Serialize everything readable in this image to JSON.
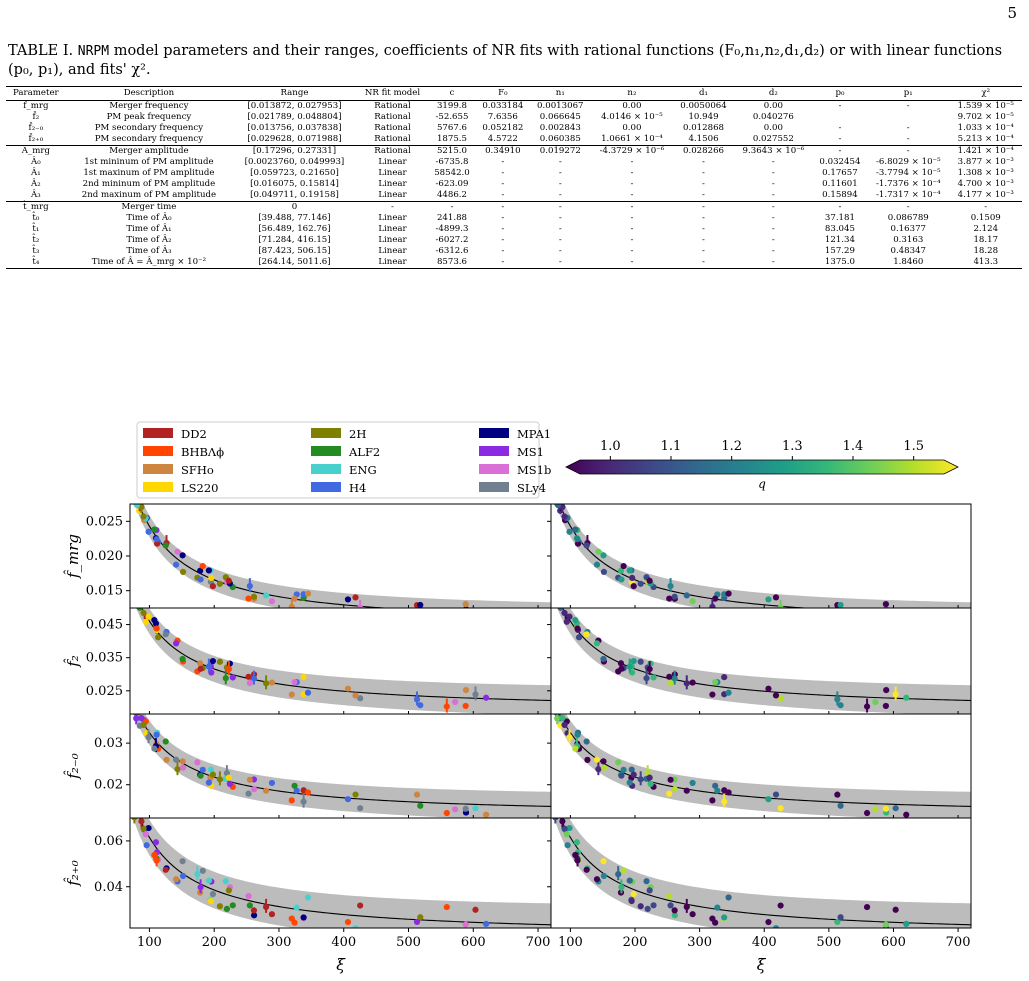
{
  "page_number": "5",
  "caption": {
    "prefix": "TABLE I.",
    "model_name": "NRPM",
    "text": " model parameters and their ranges, coefficients of NR fits with rational functions (F₀,n₁,n₂,d₁,d₂) or with linear functions (p₀, p₁), and fits' χ²."
  },
  "table": {
    "headers": [
      "Parameter",
      "Description",
      "Range",
      "NR fit model",
      "c",
      "F₀",
      "n₁",
      "n₂",
      "d₁",
      "d₂",
      "p₀",
      "p₁",
      "χ²"
    ],
    "groups": [
      [
        [
          "f̂_mrg",
          "Merger frequency",
          "[0.013872, 0.027953]",
          "Rational",
          "3199.8",
          "0.033184",
          "0.0013067",
          "0.00",
          "0.0050064",
          "0.00",
          "-",
          "-",
          "1.539 × 10⁻⁵"
        ],
        [
          "f̂₂",
          "PM peak frequency",
          "[0.021789, 0.048804]",
          "Rational",
          "-52.655",
          "7.6356",
          "0.066645",
          "4.0146 × 10⁻⁵",
          "10.949",
          "0.040276",
          "",
          "",
          "9.702 × 10⁻⁵"
        ],
        [
          "f̂₂₋₀",
          "PM secondary frequency",
          "[0.013756, 0.037838]",
          "Rational",
          "5767.6",
          "0.052182",
          "0.002843",
          "0.00",
          "0.012868",
          "0.00",
          "-",
          "-",
          "1.033 × 10⁻⁴"
        ],
        [
          "f̂₂₊₀",
          "PM secondary frequency",
          "[0.029628, 0.071988]",
          "Rational",
          "1875.5",
          "4.5722",
          "0.060385",
          "1.0661 × 10⁻⁴",
          "4.1506",
          "0.027552",
          "-",
          "-",
          "5.213 × 10⁻⁴"
        ]
      ],
      [
        [
          "Â_mrg",
          "Merger amplitude",
          "[0.17296, 0.27331]",
          "Rational",
          "5215.0",
          "0.34910",
          "0.019272",
          "-4.3729 × 10⁻⁶",
          "0.028266",
          "9.3643 × 10⁻⁶",
          "-",
          "-",
          "1.421 × 10⁻⁴"
        ],
        [
          "Â₀",
          "1st mininum of PM amplitude",
          "[0.0023760, 0.049993]",
          "Linear",
          "-6735.8",
          "-",
          "-",
          "-",
          "-",
          "-",
          "0.032454",
          "-6.8029 × 10⁻⁵",
          "3.877 × 10⁻³"
        ],
        [
          "Â₁",
          "1st maxinum of PM amplitude",
          "[0.059723, 0.21650]",
          "Linear",
          "58542.0",
          "-",
          "-",
          "-",
          "-",
          "-",
          "0.17657",
          "-3.7794 × 10⁻⁵",
          "1.308 × 10⁻³"
        ],
        [
          "Â₂",
          "2nd mininum of PM amplitude",
          "[0.016075, 0.15814]",
          "Linear",
          "-623.09",
          "-",
          "-",
          "-",
          "-",
          "-",
          "0.11601",
          "-1.7376 × 10⁻⁴",
          "4.700 × 10⁻³"
        ],
        [
          "Â₃",
          "2nd maxinum of PM amplitude",
          "[0.049711, 0.19158]",
          "Linear",
          "4486.2",
          "-",
          "-",
          "-",
          "-",
          "-",
          "0.15894",
          "-1.7317 × 10⁻⁴",
          "4.177 × 10⁻³"
        ]
      ],
      [
        [
          "t̂_mrg",
          "Merger time",
          "0",
          "-",
          "-",
          "-",
          "-",
          "-",
          "-",
          "-",
          "-",
          "-",
          "-"
        ],
        [
          "t̂₀",
          "Time of Â₀",
          "[39.488, 77.146]",
          "Linear",
          "241.88",
          "-",
          "-",
          "-",
          "-",
          "-",
          "37.181",
          "0.086789",
          "0.1509"
        ],
        [
          "t̂₁",
          "Time of Â₁",
          "[56.489, 162.76]",
          "Linear",
          "-4899.3",
          "-",
          "-",
          "-",
          "-",
          "-",
          "83.045",
          "0.16377",
          "2.124"
        ],
        [
          "t̂₂",
          "Time of Â₂",
          "[71.284, 416.15]",
          "Linear",
          "-6027.2",
          "-",
          "-",
          "-",
          "-",
          "-",
          "121.34",
          "0.3163",
          "18.17"
        ],
        [
          "t̂₃",
          "Time of Â₃",
          "[87.423, 506.15]",
          "Linear",
          "-6312.6",
          "-",
          "-",
          "-",
          "-",
          "-",
          "157.29",
          "0.48347",
          "18.28"
        ],
        [
          "t̂₄",
          "Time of Â = Â_mrg × 10⁻²",
          "[264.14, 5011.6]",
          "Linear",
          "8573.6",
          "-",
          "-",
          "-",
          "-",
          "-",
          "1375.0",
          "1.8460",
          "413.3"
        ]
      ]
    ]
  },
  "legend": [
    {
      "name": "DD2",
      "color": "#b22222"
    },
    {
      "name": "BHBΛϕ",
      "color": "#ff4500"
    },
    {
      "name": "SFHo",
      "color": "#cd853f"
    },
    {
      "name": "LS220",
      "color": "#ffd700"
    },
    {
      "name": "2H",
      "color": "#808000"
    },
    {
      "name": "ALF2",
      "color": "#228b22"
    },
    {
      "name": "ENG",
      "color": "#48d1cc"
    },
    {
      "name": "H4",
      "color": "#4169e1"
    },
    {
      "name": "MPA1",
      "color": "#000080"
    },
    {
      "name": "MS1",
      "color": "#8a2be2"
    },
    {
      "name": "MS1b",
      "color": "#da70d6"
    },
    {
      "name": "SLy4",
      "color": "#708090"
    }
  ],
  "colorbar": {
    "label": "q",
    "ticks": [
      "1.0",
      "1.1",
      "1.2",
      "1.3",
      "1.4",
      "1.5"
    ],
    "range": [
      0.95,
      1.55
    ]
  },
  "chart_data": [
    {
      "type": "scatter",
      "panel": "f_mrg left",
      "ylabel": "f̂_mrg",
      "xlabel": "",
      "yticks": [
        "0.015",
        "0.020",
        "0.025"
      ],
      "ylim": [
        0.0125,
        0.0275
      ],
      "xlim": [
        70,
        720
      ],
      "fit": {
        "a": 0.0098,
        "b": 1.45,
        "c": 0.35,
        "band": 0.0017
      }
    },
    {
      "type": "scatter",
      "panel": "f2 left",
      "ylabel": "f̂₂",
      "yticks": [
        "0.025",
        "0.035",
        "0.045"
      ],
      "ylim": [
        0.018,
        0.05
      ],
      "xlim": [
        70,
        720
      ],
      "fit": {
        "a": 0.019,
        "b": 2.7,
        "c": 0.5,
        "band": 0.0042
      }
    },
    {
      "type": "scatter",
      "panel": "f2-0 left",
      "ylabel": "f̂₂₋₀",
      "yticks": [
        "0.02",
        "0.03"
      ],
      "ylim": [
        0.012,
        0.037
      ],
      "xlim": [
        70,
        720
      ],
      "fit": {
        "a": 0.0125,
        "b": 2.0,
        "c": 0.4,
        "band": 0.0032
      }
    },
    {
      "type": "scatter",
      "panel": "f2+0 left",
      "ylabel": "f̂₂₊₀",
      "yticks": [
        "0.04",
        "0.06"
      ],
      "ylim": [
        0.022,
        0.07
      ],
      "xlim": [
        70,
        720
      ],
      "fit": {
        "a": 0.0185,
        "b": 4.3,
        "c": 0.4,
        "band": 0.0085
      },
      "xticks": [
        "100",
        "200",
        "300",
        "400",
        "500",
        "600",
        "700"
      ],
      "xlabel": "ξ"
    },
    {
      "type": "scatter",
      "panel": "f_mrg right",
      "ylim": [
        0.0125,
        0.0275
      ],
      "xlim": [
        70,
        720
      ]
    },
    {
      "type": "scatter",
      "panel": "f2 right",
      "ylim": [
        0.018,
        0.05
      ],
      "xlim": [
        70,
        720
      ]
    },
    {
      "type": "scatter",
      "panel": "f2-0 right",
      "ylim": [
        0.012,
        0.037
      ],
      "xlim": [
        70,
        720
      ]
    },
    {
      "type": "scatter",
      "panel": "f2+0 right",
      "ylim": [
        0.022,
        0.07
      ],
      "xlim": [
        70,
        720
      ],
      "xticks": [
        "100",
        "200",
        "300",
        "400",
        "500",
        "600",
        "700"
      ],
      "xlabel": "ξ"
    }
  ]
}
